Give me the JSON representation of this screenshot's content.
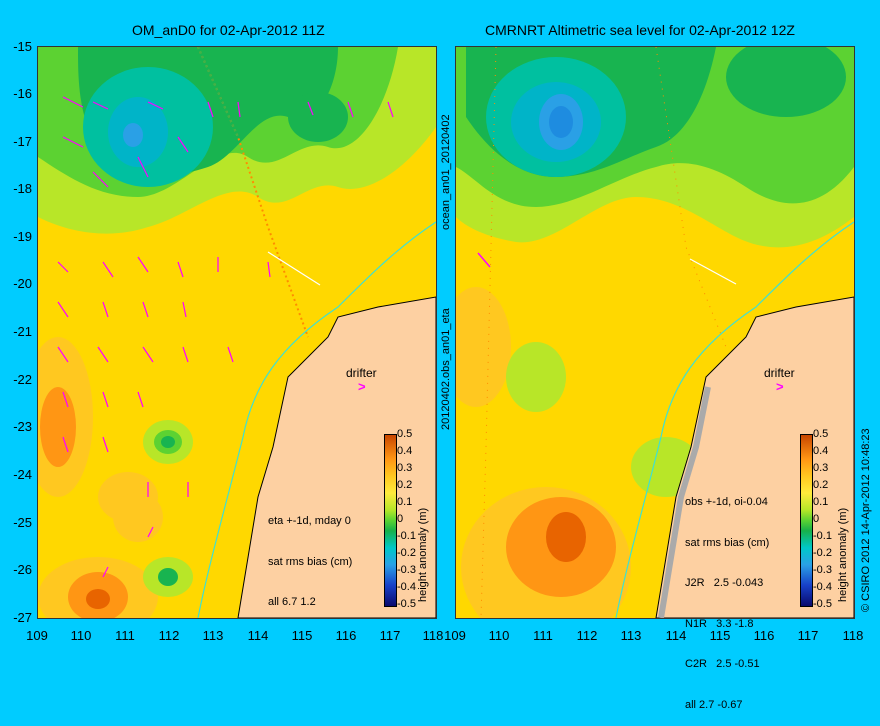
{
  "titles": {
    "left": "OM_anD0 for 02-Apr-2012 11Z",
    "right": "CMRNRT Altimetric sea level  for 02-Apr-2012 12Z"
  },
  "axes": {
    "lat_ticks": [
      "-15",
      "-16",
      "-17",
      "-18",
      "-19",
      "-20",
      "-21",
      "-22",
      "-23",
      "-24",
      "-25",
      "-26",
      "-27"
    ],
    "lon_ticks_left": [
      "109",
      "110",
      "111",
      "112",
      "113",
      "114",
      "115",
      "116",
      "117",
      "118"
    ],
    "lon_ticks_right": [
      "109",
      "110",
      "111",
      "112",
      "113",
      "114",
      "115",
      "116",
      "117",
      "118"
    ]
  },
  "left_panel": {
    "side_label": "ocean_an01_20120402",
    "drifter_label": "drifter",
    "drifter_arrow": ">",
    "stats": [
      "eta +-1d, mday 0",
      "sat rms bias (cm)",
      "all 6.7 1.2"
    ]
  },
  "right_panel": {
    "side_label": "20120402.obs_an01_eta",
    "drifter_label": "drifter",
    "drifter_arrow": ">",
    "stats": [
      "obs +-1d, oi-0.04",
      "sat rms bias (cm)",
      "J2R   2.5 -0.043",
      "N1R   3.3 -1.8",
      "C2R   2.5 -0.51",
      "all 2.7 -0.67"
    ],
    "credit": "© CSIRO 2012  14-Apr-2012 10:48:23"
  },
  "colorbar": {
    "label": "height anomaly (m)",
    "ticks": [
      "0.5",
      "0.4",
      "0.3",
      "0.2",
      "0.1",
      "0",
      "-0.1",
      "-0.2",
      "-0.3",
      "-0.4",
      "-0.5"
    ]
  },
  "colors": {
    "background": "#00ccff",
    "land": "#fdd0a2",
    "vector": "#ff00ff",
    "coast_contour": "#40e0d0"
  }
}
